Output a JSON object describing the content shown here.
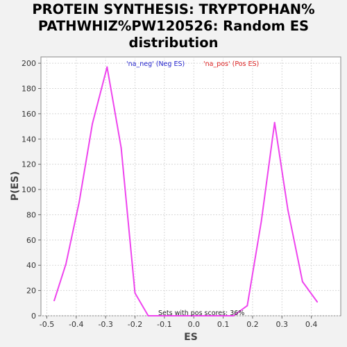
{
  "chart_data": {
    "type": "line",
    "title_lines": [
      "PROTEIN SYNTHESIS: TRYPTOPHAN%",
      "PATHWHIZ%PW120526: Random ES",
      "distribution"
    ],
    "xlabel": "ES",
    "ylabel": "P(ES)",
    "xlim": [
      -0.52,
      0.5
    ],
    "ylim": [
      0,
      205
    ],
    "xticks": [
      -0.5,
      -0.4,
      -0.3,
      -0.2,
      -0.1,
      0.0,
      0.1,
      0.2,
      0.3,
      0.4
    ],
    "xtick_labels": [
      "-0.5",
      "-0.4",
      "-0.3",
      "-0.2",
      "-0.1",
      "0.0",
      "0.1",
      "0.2",
      "0.3",
      "0.4"
    ],
    "yticks": [
      0,
      20,
      40,
      60,
      80,
      100,
      120,
      140,
      160,
      180,
      200
    ],
    "ytick_labels": [
      "0",
      "20",
      "40",
      "60",
      "80",
      "100",
      "120",
      "140",
      "160",
      "180",
      "200"
    ],
    "grid": true,
    "legend": [
      {
        "label": "'na_neg' (Neg ES)",
        "color": "#2222cc"
      },
      {
        "label": "'na_pos' (Pos ES)",
        "color": "#dd2222"
      }
    ],
    "annotation": "Sets with pos scores: 36%",
    "series": [
      {
        "color": "#ee44ee",
        "x": [
          -0.475,
          -0.435,
          -0.39,
          -0.345,
          -0.295,
          -0.247,
          -0.2,
          -0.155,
          -0.11,
          0.135,
          0.182,
          0.23,
          0.275,
          0.32,
          0.37,
          0.42
        ],
        "y": [
          12,
          41,
          90,
          152,
          197,
          133,
          18,
          0,
          0,
          0,
          8,
          75,
          153,
          84,
          27,
          11
        ]
      }
    ]
  }
}
